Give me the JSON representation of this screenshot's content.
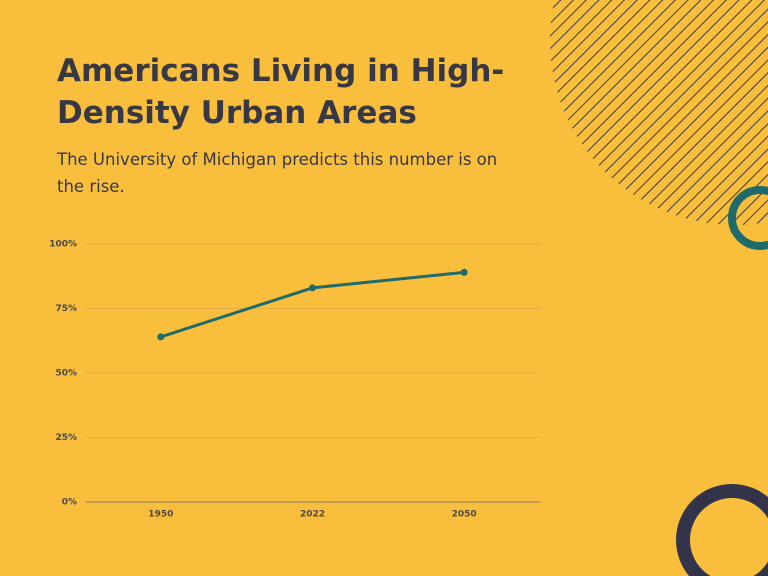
{
  "chart_data": {
    "type": "line",
    "title": "Americans Living in High-Density Urban Areas",
    "subtitle": "The University of Michigan predicts this number is on the rise.",
    "categories": [
      "1950",
      "2022",
      "2050"
    ],
    "values": [
      64,
      83,
      89
    ],
    "color": "#1f6a6a",
    "ylim": [
      0,
      100
    ],
    "yticks": [
      {
        "value": 0,
        "label": "0%"
      },
      {
        "value": 25,
        "label": "25%"
      },
      {
        "value": 50,
        "label": "50%"
      },
      {
        "value": 75,
        "label": "75%"
      },
      {
        "value": 100,
        "label": "100%"
      }
    ],
    "grid": true
  }
}
